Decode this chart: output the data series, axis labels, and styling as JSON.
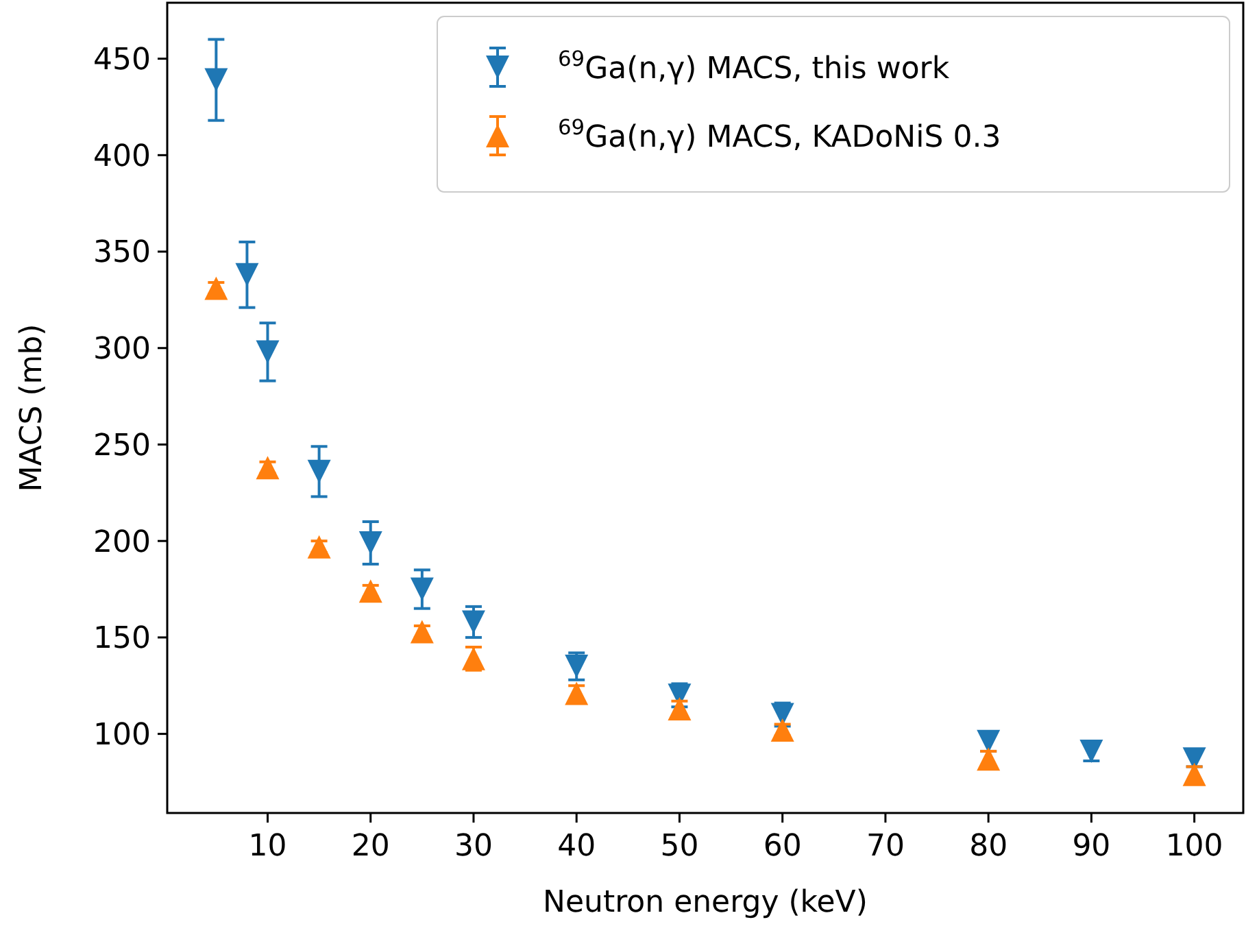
{
  "chart_data": {
    "type": "scatter",
    "xlabel": "Neutron energy (keV)",
    "ylabel": "MACS (mb)",
    "xlim": [
      0.25,
      104.75
    ],
    "ylim": [
      59,
      479
    ],
    "xticks": [
      10,
      20,
      30,
      40,
      50,
      60,
      70,
      80,
      90,
      100
    ],
    "yticks": [
      100,
      150,
      200,
      250,
      300,
      350,
      400,
      450
    ],
    "grid": false,
    "legend": "top right",
    "series": [
      {
        "name": "$^{69}$Ga(n,γ) MACS, this work",
        "color": "#1f77b4",
        "marker": "triangle-down",
        "x": [
          5,
          8,
          10,
          15,
          20,
          25,
          30,
          40,
          50,
          60,
          80,
          90,
          100
        ],
        "values": [
          439,
          338,
          298,
          236,
          199,
          175,
          158,
          135,
          120,
          110,
          96,
          91,
          87
        ],
        "errors": [
          21,
          17,
          15,
          13,
          11,
          10,
          8,
          7,
          6,
          6,
          5,
          5,
          4
        ]
      },
      {
        "name": "$^{69}$Ga(n,γ) MACS, KADoNiS 0.3",
        "color": "#ff7f0e",
        "marker": "triangle",
        "x": [
          5,
          10,
          15,
          20,
          25,
          30,
          40,
          50,
          60,
          80,
          100
        ],
        "values": [
          331,
          238,
          197,
          174,
          153,
          139,
          121,
          113,
          102,
          87,
          79
        ],
        "errors": [
          3,
          3,
          3,
          3,
          3,
          6,
          4,
          4,
          3,
          4,
          4
        ]
      }
    ]
  }
}
